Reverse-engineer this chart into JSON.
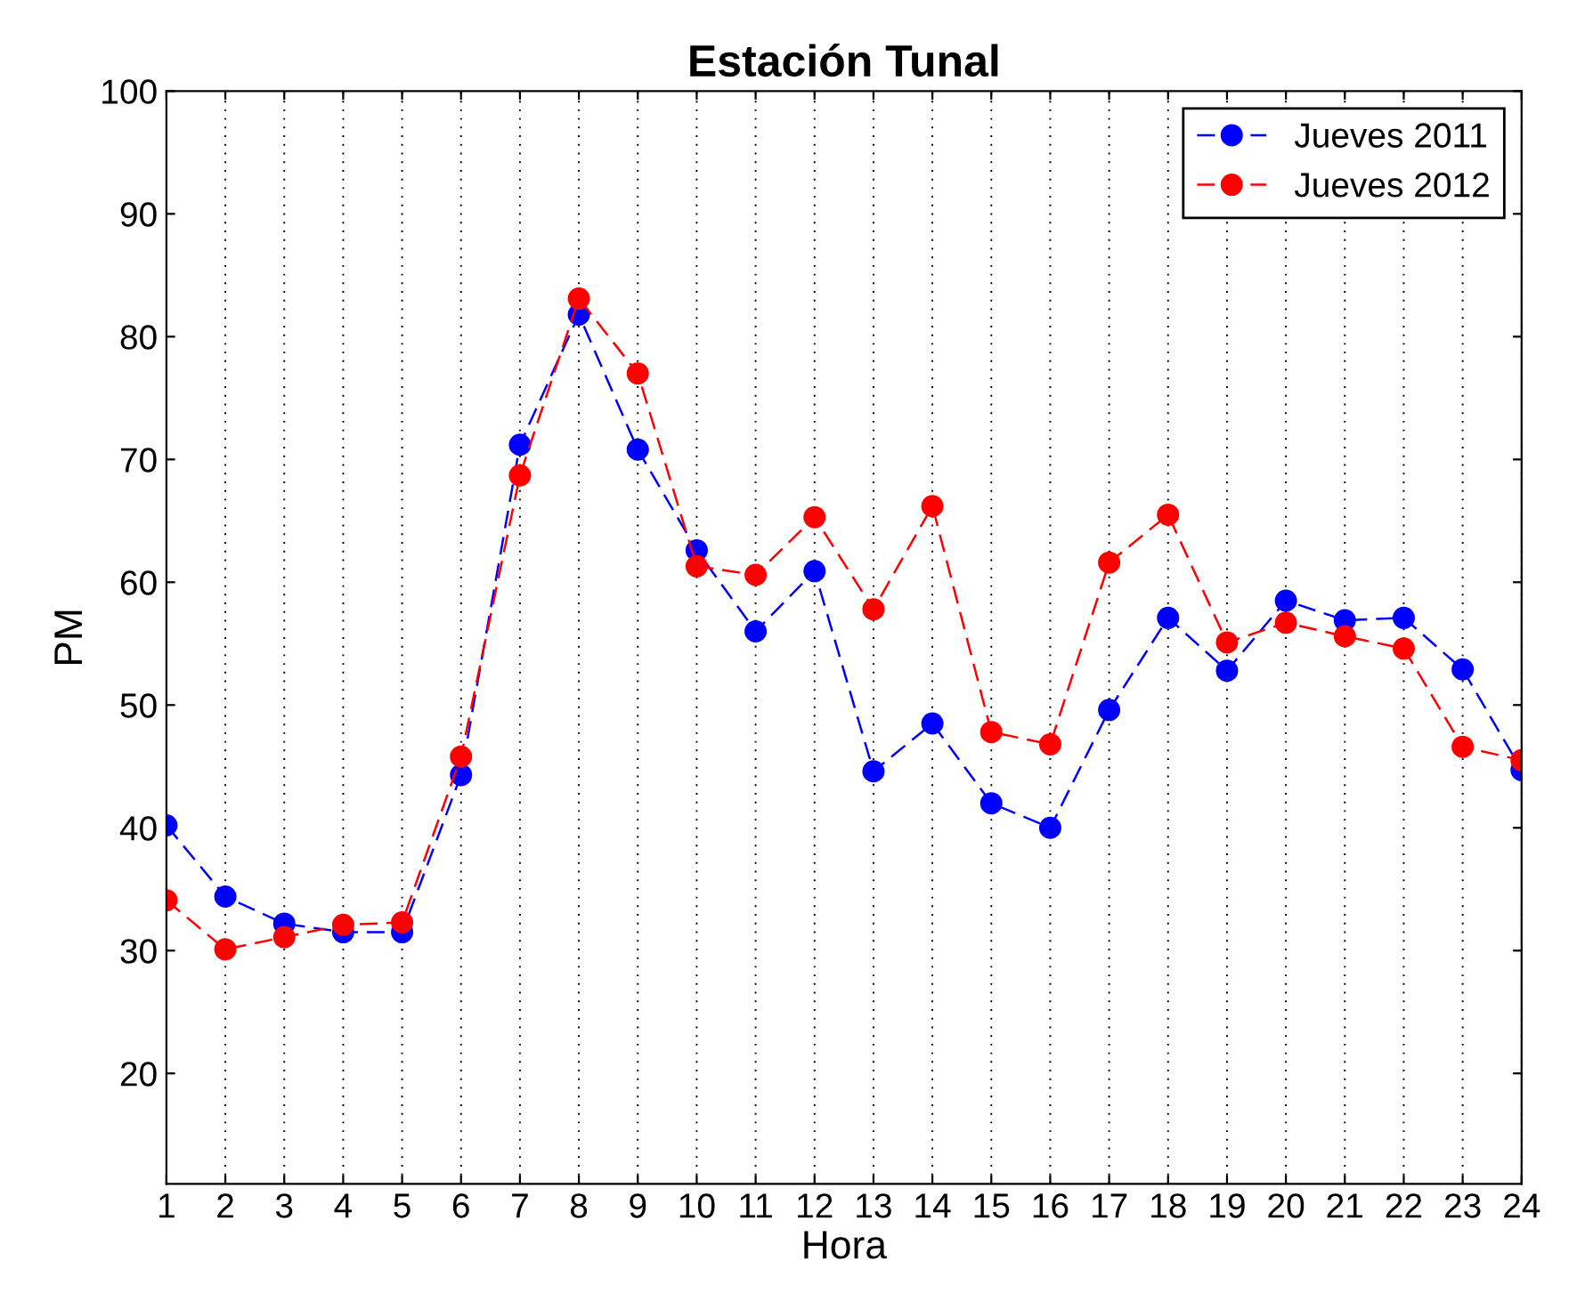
{
  "chart_data": {
    "type": "line",
    "title": "Estación Tunal",
    "xlabel": "Hora",
    "ylabel": "PM",
    "x": [
      1,
      2,
      3,
      4,
      5,
      6,
      7,
      8,
      9,
      10,
      11,
      12,
      13,
      14,
      15,
      16,
      17,
      18,
      19,
      20,
      21,
      22,
      23,
      24
    ],
    "series": [
      {
        "name": "Jueves 2011",
        "color": "#0000ff",
        "values": [
          40.2,
          34.4,
          32.2,
          31.5,
          31.5,
          44.3,
          71.2,
          81.8,
          70.8,
          62.6,
          56.0,
          60.9,
          44.6,
          48.5,
          42.0,
          40.0,
          49.6,
          57.1,
          52.8,
          58.5,
          56.9,
          57.1,
          52.9,
          44.7
        ]
      },
      {
        "name": "Jueves 2012",
        "color": "#ff0000",
        "values": [
          34.1,
          30.1,
          31.1,
          32.1,
          32.3,
          45.8,
          68.7,
          83.1,
          77.0,
          61.3,
          60.6,
          65.3,
          57.8,
          66.2,
          47.8,
          46.8,
          61.6,
          65.5,
          55.1,
          56.7,
          55.6,
          54.6,
          46.6,
          45.5
        ]
      }
    ],
    "xlim": [
      1,
      24
    ],
    "xticks": [
      1,
      2,
      3,
      4,
      5,
      6,
      7,
      8,
      9,
      10,
      11,
      12,
      13,
      14,
      15,
      16,
      17,
      18,
      19,
      20,
      21,
      22,
      23,
      24
    ],
    "ylim": [
      11,
      100
    ],
    "yticks": [
      20,
      30,
      40,
      50,
      60,
      70,
      80,
      90,
      100
    ],
    "grid": "x",
    "legend": "top right",
    "marker": "circle",
    "line_style": "dashed"
  }
}
